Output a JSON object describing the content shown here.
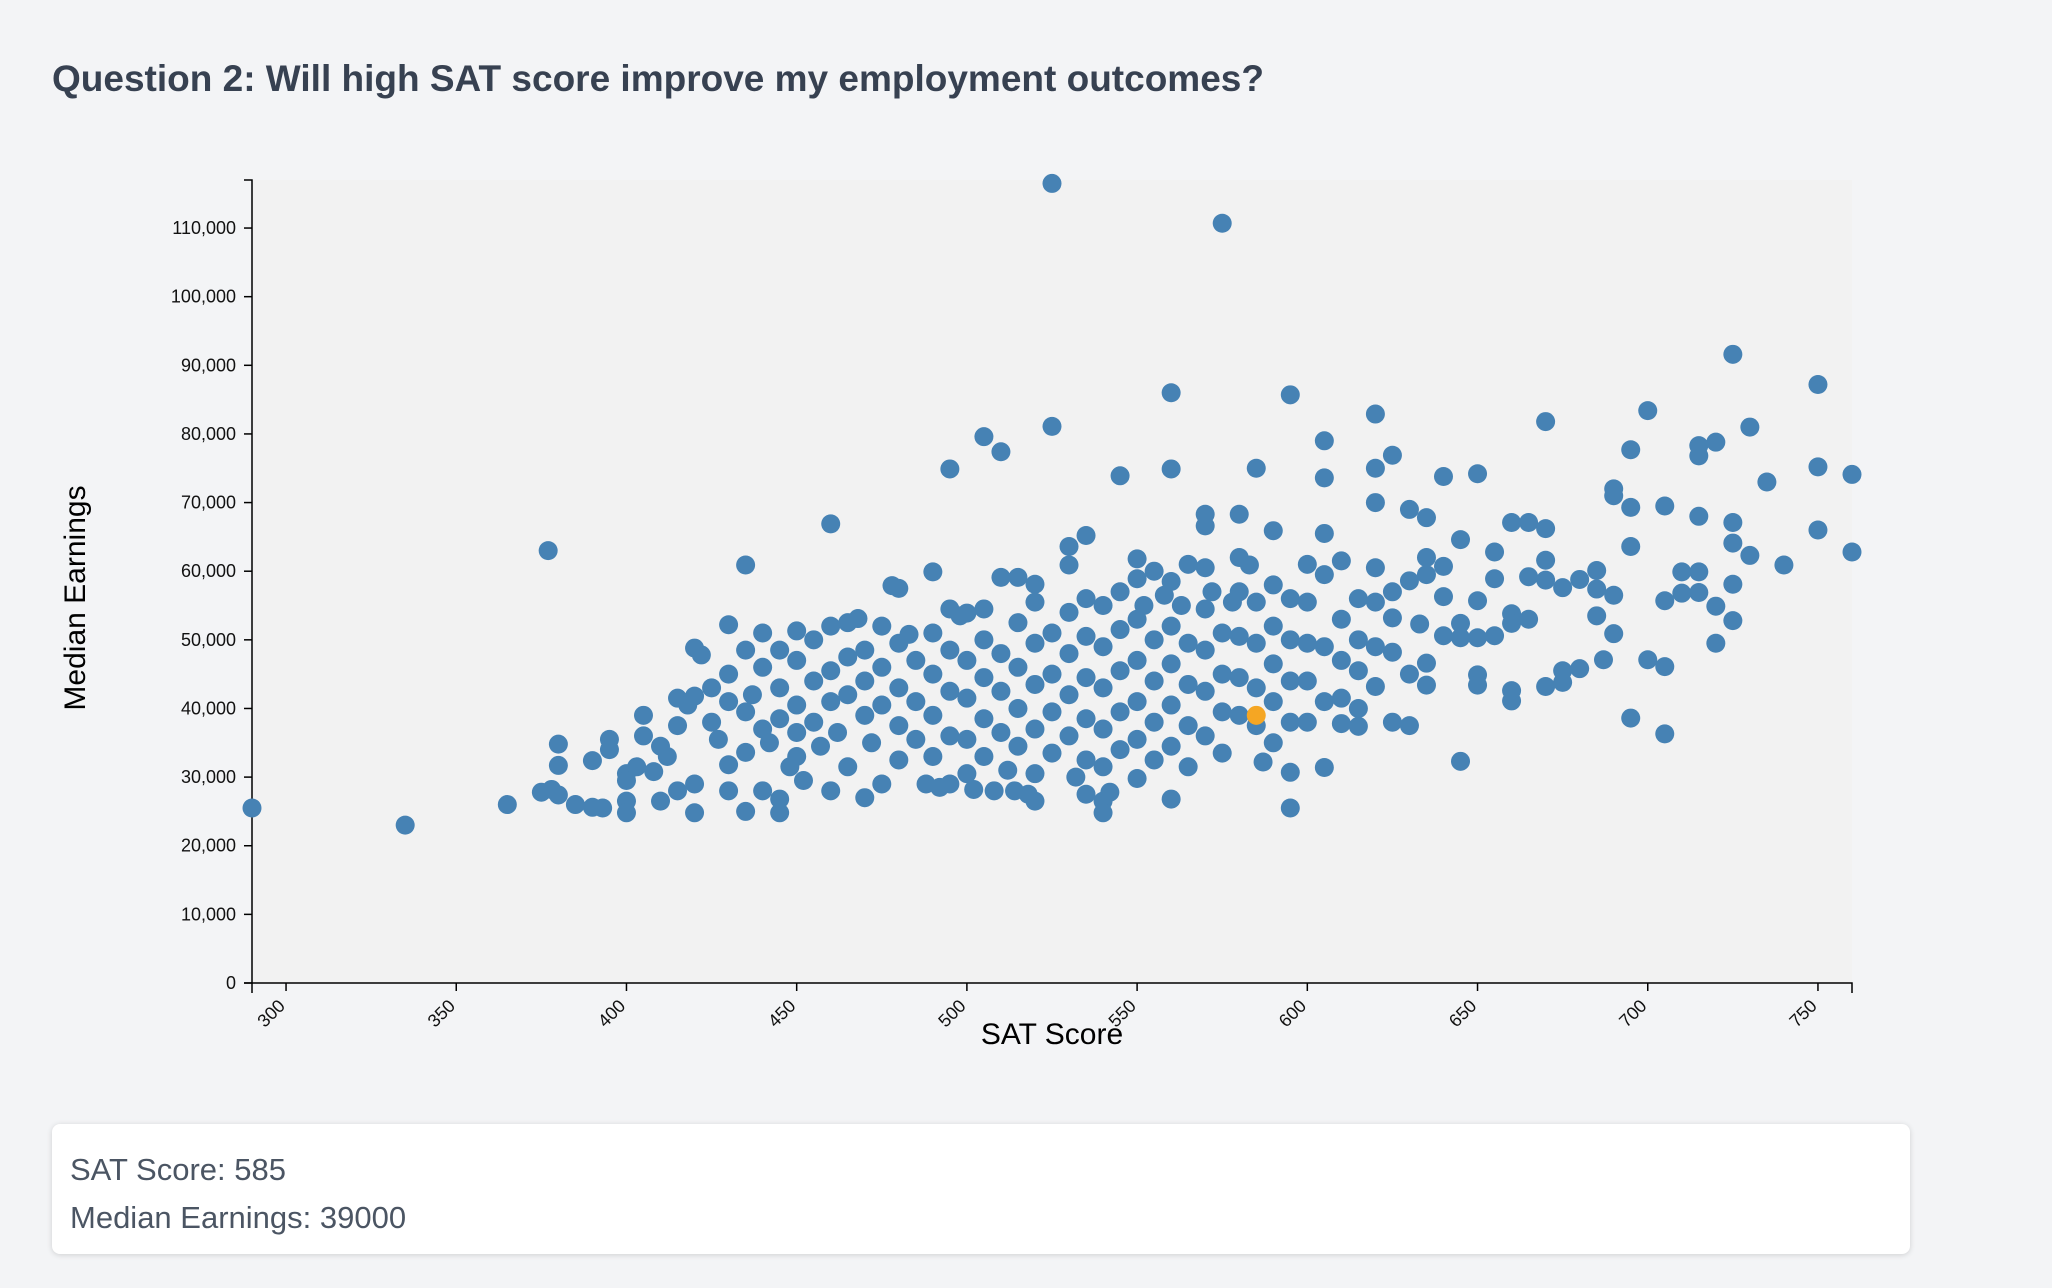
{
  "page": {
    "title": "Question 2: Will high SAT score improve my employment outcomes?"
  },
  "chart_data": {
    "type": "scatter",
    "xlabel": "SAT Score",
    "ylabel": "Median Earnings",
    "xlim": [
      290,
      760
    ],
    "ylim": [
      0,
      117000
    ],
    "x_ticks": [
      300,
      350,
      400,
      450,
      500,
      550,
      600,
      650,
      700,
      750
    ],
    "y_ticks": [
      0,
      10000,
      20000,
      30000,
      40000,
      50000,
      60000,
      70000,
      80000,
      90000,
      100000,
      110000
    ],
    "point_color": "#4682b4",
    "highlight_color": "#f5a623",
    "highlight": {
      "x": 585,
      "y": 39000
    },
    "points": [
      [
        290,
        25500
      ],
      [
        335,
        23000
      ],
      [
        365,
        26000
      ],
      [
        375,
        27800
      ],
      [
        377,
        63000
      ],
      [
        378,
        28200
      ],
      [
        380,
        34800
      ],
      [
        380,
        31700
      ],
      [
        380,
        27400
      ],
      [
        385,
        26000
      ],
      [
        390,
        32400
      ],
      [
        390,
        25600
      ],
      [
        393,
        25500
      ],
      [
        395,
        35500
      ],
      [
        395,
        34000
      ],
      [
        400,
        26500
      ],
      [
        400,
        24800
      ],
      [
        400,
        30500
      ],
      [
        400,
        29500
      ],
      [
        403,
        31500
      ],
      [
        405,
        39000
      ],
      [
        405,
        36000
      ],
      [
        408,
        30800
      ],
      [
        410,
        26500
      ],
      [
        410,
        34500
      ],
      [
        412,
        33000
      ],
      [
        415,
        41500
      ],
      [
        415,
        37500
      ],
      [
        415,
        28000
      ],
      [
        418,
        40500
      ],
      [
        420,
        48800
      ],
      [
        420,
        41800
      ],
      [
        420,
        29000
      ],
      [
        420,
        24800
      ],
      [
        422,
        47800
      ],
      [
        425,
        43000
      ],
      [
        425,
        38000
      ],
      [
        427,
        35500
      ],
      [
        430,
        52200
      ],
      [
        430,
        45000
      ],
      [
        430,
        41000
      ],
      [
        430,
        31800
      ],
      [
        430,
        28000
      ],
      [
        435,
        60900
      ],
      [
        435,
        48500
      ],
      [
        435,
        39500
      ],
      [
        435,
        33600
      ],
      [
        435,
        25000
      ],
      [
        437,
        42000
      ],
      [
        440,
        51000
      ],
      [
        440,
        46000
      ],
      [
        440,
        37000
      ],
      [
        440,
        28000
      ],
      [
        442,
        35000
      ],
      [
        445,
        48500
      ],
      [
        445,
        43000
      ],
      [
        445,
        38500
      ],
      [
        445,
        26800
      ],
      [
        445,
        24800
      ],
      [
        448,
        31500
      ],
      [
        450,
        51300
      ],
      [
        450,
        47000
      ],
      [
        450,
        40500
      ],
      [
        450,
        36500
      ],
      [
        450,
        33000
      ],
      [
        452,
        29500
      ],
      [
        455,
        50000
      ],
      [
        455,
        44000
      ],
      [
        455,
        38000
      ],
      [
        457,
        34500
      ],
      [
        460,
        66900
      ],
      [
        460,
        52000
      ],
      [
        460,
        45500
      ],
      [
        460,
        41000
      ],
      [
        460,
        28000
      ],
      [
        462,
        36500
      ],
      [
        465,
        52500
      ],
      [
        465,
        47500
      ],
      [
        465,
        42000
      ],
      [
        465,
        31500
      ],
      [
        468,
        53100
      ],
      [
        470,
        48500
      ],
      [
        470,
        44000
      ],
      [
        470,
        39000
      ],
      [
        470,
        27000
      ],
      [
        472,
        35000
      ],
      [
        475,
        52000
      ],
      [
        475,
        46000
      ],
      [
        475,
        40500
      ],
      [
        475,
        29000
      ],
      [
        478,
        57900
      ],
      [
        480,
        57500
      ],
      [
        480,
        49500
      ],
      [
        480,
        43000
      ],
      [
        480,
        37500
      ],
      [
        480,
        32500
      ],
      [
        483,
        50800
      ],
      [
        485,
        47000
      ],
      [
        485,
        41000
      ],
      [
        485,
        35500
      ],
      [
        488,
        29000
      ],
      [
        490,
        59900
      ],
      [
        490,
        51000
      ],
      [
        490,
        45000
      ],
      [
        490,
        39000
      ],
      [
        490,
        33000
      ],
      [
        492,
        28500
      ],
      [
        495,
        74900
      ],
      [
        495,
        54500
      ],
      [
        495,
        48500
      ],
      [
        495,
        42500
      ],
      [
        495,
        36000
      ],
      [
        495,
        29000
      ],
      [
        498,
        53500
      ],
      [
        500,
        53900
      ],
      [
        500,
        47000
      ],
      [
        500,
        41500
      ],
      [
        500,
        35500
      ],
      [
        500,
        30500
      ],
      [
        502,
        28200
      ],
      [
        505,
        79600
      ],
      [
        505,
        54500
      ],
      [
        505,
        50000
      ],
      [
        505,
        44500
      ],
      [
        505,
        38500
      ],
      [
        505,
        33000
      ],
      [
        508,
        28000
      ],
      [
        510,
        77400
      ],
      [
        510,
        59100
      ],
      [
        510,
        48000
      ],
      [
        510,
        42500
      ],
      [
        510,
        36500
      ],
      [
        512,
        31000
      ],
      [
        514,
        28000
      ],
      [
        515,
        59100
      ],
      [
        515,
        52500
      ],
      [
        515,
        46000
      ],
      [
        515,
        40000
      ],
      [
        515,
        34500
      ],
      [
        518,
        27500
      ],
      [
        520,
        58100
      ],
      [
        520,
        55500
      ],
      [
        520,
        49500
      ],
      [
        520,
        43500
      ],
      [
        520,
        37000
      ],
      [
        520,
        30500
      ],
      [
        520,
        26500
      ],
      [
        525,
        116500
      ],
      [
        525,
        81100
      ],
      [
        525,
        51000
      ],
      [
        525,
        45000
      ],
      [
        525,
        39500
      ],
      [
        525,
        33500
      ],
      [
        530,
        63600
      ],
      [
        530,
        60900
      ],
      [
        530,
        54000
      ],
      [
        530,
        48000
      ],
      [
        530,
        42000
      ],
      [
        530,
        36000
      ],
      [
        532,
        30000
      ],
      [
        535,
        65200
      ],
      [
        535,
        56000
      ],
      [
        535,
        50500
      ],
      [
        535,
        44500
      ],
      [
        535,
        38500
      ],
      [
        535,
        32500
      ],
      [
        535,
        27500
      ],
      [
        540,
        55000
      ],
      [
        540,
        49000
      ],
      [
        540,
        43000
      ],
      [
        540,
        37000
      ],
      [
        540,
        31500
      ],
      [
        540,
        26500
      ],
      [
        540,
        24800
      ],
      [
        542,
        27800
      ],
      [
        545,
        73900
      ],
      [
        545,
        57000
      ],
      [
        545,
        51500
      ],
      [
        545,
        45500
      ],
      [
        545,
        39500
      ],
      [
        545,
        34000
      ],
      [
        550,
        61800
      ],
      [
        550,
        58900
      ],
      [
        550,
        53000
      ],
      [
        550,
        47000
      ],
      [
        550,
        41000
      ],
      [
        550,
        35500
      ],
      [
        550,
        29800
      ],
      [
        552,
        55000
      ],
      [
        555,
        60000
      ],
      [
        555,
        50000
      ],
      [
        555,
        44000
      ],
      [
        555,
        38000
      ],
      [
        555,
        32500
      ],
      [
        558,
        56500
      ],
      [
        560,
        86000
      ],
      [
        560,
        74900
      ],
      [
        560,
        58500
      ],
      [
        560,
        52000
      ],
      [
        560,
        46500
      ],
      [
        560,
        40500
      ],
      [
        560,
        34500
      ],
      [
        560,
        26800
      ],
      [
        563,
        55000
      ],
      [
        565,
        61000
      ],
      [
        565,
        49500
      ],
      [
        565,
        43500
      ],
      [
        565,
        37500
      ],
      [
        565,
        31500
      ],
      [
        570,
        68300
      ],
      [
        570,
        66600
      ],
      [
        570,
        60500
      ],
      [
        570,
        54500
      ],
      [
        570,
        48500
      ],
      [
        570,
        42500
      ],
      [
        570,
        36000
      ],
      [
        572,
        57000
      ],
      [
        575,
        110700
      ],
      [
        575,
        51000
      ],
      [
        575,
        45000
      ],
      [
        575,
        39500
      ],
      [
        575,
        33500
      ],
      [
        578,
        55500
      ],
      [
        580,
        68300
      ],
      [
        580,
        62000
      ],
      [
        580,
        57000
      ],
      [
        580,
        50500
      ],
      [
        580,
        44500
      ],
      [
        580,
        39000
      ],
      [
        583,
        60900
      ],
      [
        585,
        75000
      ],
      [
        585,
        55500
      ],
      [
        585,
        49500
      ],
      [
        585,
        43000
      ],
      [
        585,
        37500
      ],
      [
        587,
        32200
      ],
      [
        590,
        65900
      ],
      [
        590,
        58000
      ],
      [
        590,
        52000
      ],
      [
        590,
        46500
      ],
      [
        590,
        41000
      ],
      [
        590,
        35000
      ],
      [
        595,
        85700
      ],
      [
        595,
        56000
      ],
      [
        595,
        50000
      ],
      [
        595,
        44000
      ],
      [
        595,
        38000
      ],
      [
        595,
        30700
      ],
      [
        595,
        25500
      ],
      [
        600,
        61000
      ],
      [
        600,
        55500
      ],
      [
        600,
        49500
      ],
      [
        600,
        44000
      ],
      [
        600,
        38000
      ],
      [
        605,
        79000
      ],
      [
        605,
        73600
      ],
      [
        605,
        65500
      ],
      [
        605,
        59500
      ],
      [
        605,
        49000
      ],
      [
        605,
        41000
      ],
      [
        605,
        31400
      ],
      [
        610,
        61500
      ],
      [
        610,
        53000
      ],
      [
        610,
        47000
      ],
      [
        610,
        41500
      ],
      [
        610,
        37800
      ],
      [
        615,
        56000
      ],
      [
        615,
        50000
      ],
      [
        615,
        45500
      ],
      [
        615,
        40000
      ],
      [
        615,
        37400
      ],
      [
        620,
        82900
      ],
      [
        620,
        75000
      ],
      [
        620,
        70000
      ],
      [
        620,
        60500
      ],
      [
        620,
        55500
      ],
      [
        620,
        49000
      ],
      [
        620,
        43200
      ],
      [
        625,
        76900
      ],
      [
        625,
        57000
      ],
      [
        625,
        53200
      ],
      [
        625,
        48200
      ],
      [
        625,
        38000
      ],
      [
        630,
        69000
      ],
      [
        630,
        58600
      ],
      [
        630,
        45000
      ],
      [
        630,
        37500
      ],
      [
        633,
        52300
      ],
      [
        635,
        67800
      ],
      [
        635,
        62000
      ],
      [
        635,
        59500
      ],
      [
        635,
        46600
      ],
      [
        635,
        43400
      ],
      [
        640,
        73800
      ],
      [
        640,
        60700
      ],
      [
        640,
        56300
      ],
      [
        640,
        50600
      ],
      [
        645,
        64600
      ],
      [
        645,
        52400
      ],
      [
        645,
        50300
      ],
      [
        645,
        32300
      ],
      [
        650,
        74200
      ],
      [
        650,
        55700
      ],
      [
        650,
        50300
      ],
      [
        650,
        44900
      ],
      [
        650,
        43400
      ],
      [
        655,
        62800
      ],
      [
        655,
        58900
      ],
      [
        655,
        50600
      ],
      [
        660,
        67100
      ],
      [
        660,
        53800
      ],
      [
        660,
        52400
      ],
      [
        660,
        42600
      ],
      [
        660,
        41100
      ],
      [
        665,
        67100
      ],
      [
        665,
        59200
      ],
      [
        665,
        53000
      ],
      [
        670,
        81800
      ],
      [
        670,
        66200
      ],
      [
        670,
        61600
      ],
      [
        670,
        58700
      ],
      [
        670,
        43200
      ],
      [
        675,
        57600
      ],
      [
        675,
        45500
      ],
      [
        675,
        43800
      ],
      [
        680,
        58800
      ],
      [
        680,
        45800
      ],
      [
        685,
        60100
      ],
      [
        685,
        57400
      ],
      [
        685,
        53500
      ],
      [
        687,
        47100
      ],
      [
        690,
        72000
      ],
      [
        690,
        71000
      ],
      [
        690,
        56500
      ],
      [
        690,
        50900
      ],
      [
        695,
        77700
      ],
      [
        695,
        69300
      ],
      [
        695,
        63600
      ],
      [
        695,
        38600
      ],
      [
        700,
        83400
      ],
      [
        700,
        47100
      ],
      [
        705,
        69500
      ],
      [
        705,
        55700
      ],
      [
        705,
        46100
      ],
      [
        705,
        36300
      ],
      [
        710,
        59900
      ],
      [
        710,
        56800
      ],
      [
        715,
        78300
      ],
      [
        715,
        76800
      ],
      [
        715,
        68000
      ],
      [
        715,
        59900
      ],
      [
        715,
        56900
      ],
      [
        720,
        78800
      ],
      [
        720,
        54900
      ],
      [
        720,
        49500
      ],
      [
        725,
        91600
      ],
      [
        725,
        67100
      ],
      [
        725,
        64100
      ],
      [
        725,
        58100
      ],
      [
        725,
        52800
      ],
      [
        730,
        81000
      ],
      [
        730,
        62300
      ],
      [
        735,
        73000
      ],
      [
        740,
        60900
      ],
      [
        750,
        87200
      ],
      [
        750,
        75200
      ],
      [
        750,
        66000
      ],
      [
        760,
        74100
      ],
      [
        760,
        62800
      ]
    ]
  },
  "info": {
    "sat_line": "SAT Score: 585",
    "earnings_line": "Median Earnings: 39000"
  }
}
